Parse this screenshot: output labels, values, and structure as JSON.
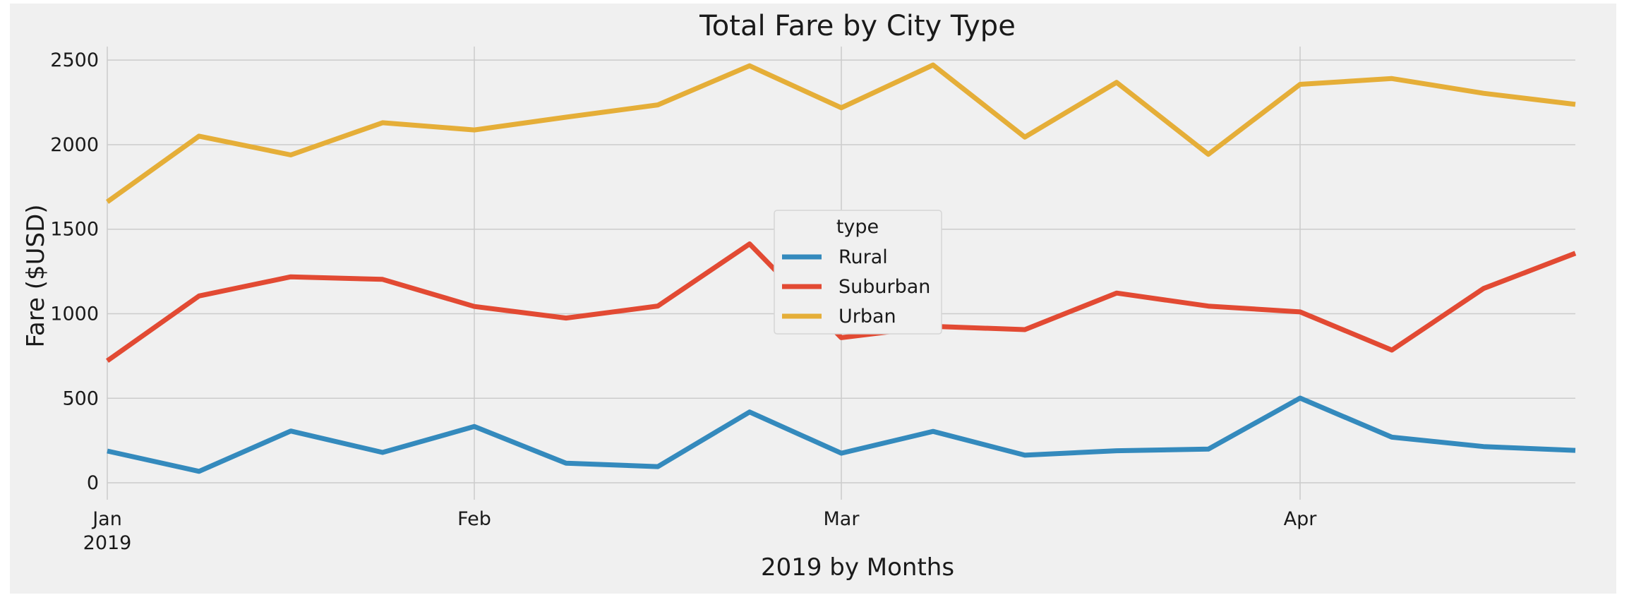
{
  "chart_data": {
    "type": "line",
    "title": "Total Fare by City Type",
    "xlabel": "2019 by Months",
    "ylabel": "Fare ($USD)",
    "x": [
      "2019-01-06",
      "2019-01-13",
      "2019-01-20",
      "2019-01-27",
      "2019-02-03",
      "2019-02-10",
      "2019-02-17",
      "2019-02-24",
      "2019-03-03",
      "2019-03-10",
      "2019-03-17",
      "2019-03-24",
      "2019-03-31",
      "2019-04-07",
      "2019-04-14",
      "2019-04-21",
      "2019-04-28"
    ],
    "xlim": [
      "2019-01-06",
      "2019-04-28"
    ],
    "ylim": [
      -100,
      2580
    ],
    "yticks": [
      0,
      500,
      1000,
      1500,
      2000,
      2500
    ],
    "xticks": [
      {
        "date": "2019-01-06",
        "label": "Jan",
        "sublabel": "2019"
      },
      {
        "date": "2019-02-03",
        "label": "Feb",
        "sublabel": ""
      },
      {
        "date": "2019-03-03",
        "label": "Mar",
        "sublabel": ""
      },
      {
        "date": "2019-04-07",
        "label": "Apr",
        "sublabel": ""
      }
    ],
    "grid": true,
    "legend": {
      "title": "type",
      "position": "center"
    },
    "series": [
      {
        "name": "Rural",
        "color": "#348ABD",
        "values": [
          187.92,
          67.65,
          306.0,
          179.69,
          333.08,
          115.8,
          95.82,
          419.06,
          175.14,
          303.94,
          163.39,
          189.76,
          199.42,
          501.24,
          269.79,
          214.14,
          191.85
        ]
      },
      {
        "name": "Suburban",
        "color": "#E24A33",
        "values": [
          721.6,
          1105.13,
          1218.2,
          1203.28,
          1042.79,
          974.34,
          1045.5,
          1412.74,
          858.46,
          925.27,
          906.2,
          1122.2,
          1045.06,
          1010.73,
          784.82,
          1149.27,
          1357.75
        ]
      },
      {
        "name": "Urban",
        "color": "#E5AE38",
        "values": [
          1661.68,
          2050.43,
          1939.02,
          2129.51,
          2086.94,
          2162.64,
          2235.07,
          2466.29,
          2218.2,
          2470.93,
          2044.42,
          2368.37,
          1942.77,
          2356.7,
          2390.72,
          2303.8,
          2238.29
        ]
      }
    ]
  }
}
